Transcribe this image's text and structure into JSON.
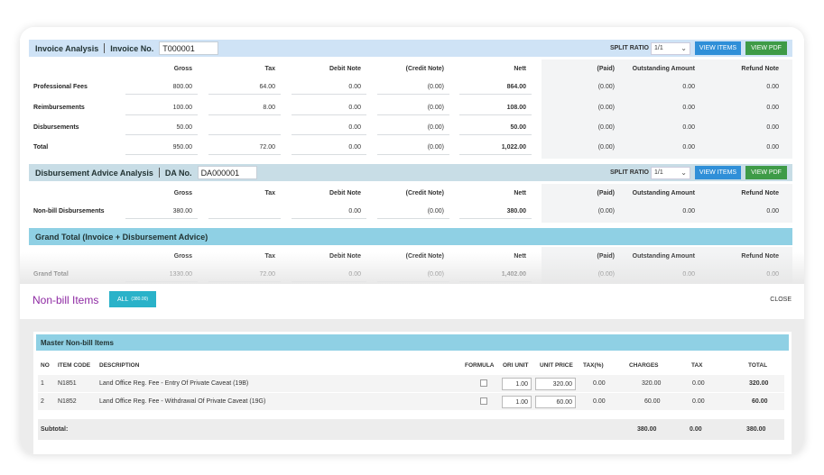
{
  "invoice": {
    "title": "Invoice Analysis",
    "no_label": "Invoice No.",
    "no_value": "T000001",
    "split_label": "SPLIT RATIO",
    "split_value": "1/1",
    "view_items": "VIEW ITEMS",
    "view_pdf": "VIEW PDF",
    "headers": [
      "Gross",
      "Tax",
      "Debit Note",
      "(Credit Note)",
      "Nett",
      "(Paid)",
      "Outstanding Amount",
      "Refund Note"
    ],
    "rows": [
      {
        "label": "Professional Fees",
        "values": [
          "800.00",
          "64.00",
          "0.00",
          "(0.00)",
          "864.00",
          "(0.00)",
          "0.00",
          "0.00"
        ]
      },
      {
        "label": "Reimbursements",
        "values": [
          "100.00",
          "8.00",
          "0.00",
          "(0.00)",
          "108.00",
          "(0.00)",
          "0.00",
          "0.00"
        ]
      },
      {
        "label": "Disbursements",
        "values": [
          "50.00",
          "",
          "0.00",
          "(0.00)",
          "50.00",
          "(0.00)",
          "0.00",
          "0.00"
        ]
      },
      {
        "label": "Total",
        "values": [
          "950.00",
          "72.00",
          "0.00",
          "(0.00)",
          "1,022.00",
          "(0.00)",
          "0.00",
          "0.00"
        ]
      }
    ]
  },
  "disbursement": {
    "title": "Disbursement Advice Analysis",
    "no_label": "DA No.",
    "no_value": "DA000001",
    "split_label": "SPLIT RATIO",
    "split_value": "1/1",
    "view_items": "VIEW ITEMS",
    "view_pdf": "VIEW PDF",
    "headers": [
      "Gross",
      "Tax",
      "Debit Note",
      "(Credit Note)",
      "Nett",
      "(Paid)",
      "Outstanding Amount",
      "Refund Note"
    ],
    "rows": [
      {
        "label": "Non-bill Disbursements",
        "values": [
          "380.00",
          "",
          "0.00",
          "(0.00)",
          "380.00",
          "(0.00)",
          "0.00",
          "0.00"
        ]
      }
    ]
  },
  "grand_total": {
    "title": "Grand Total (Invoice + Disbursement Advice)",
    "headers": [
      "Gross",
      "Tax",
      "Debit Note",
      "(Credit Note)",
      "Nett",
      "(Paid)",
      "Outstanding Amount",
      "Refund Note"
    ],
    "rows": [
      {
        "label": "Grand Total",
        "values": [
          "1330.00",
          "72.00",
          "0.00",
          "(0.00)",
          "1,402.00",
          "(0.00)",
          "0.00",
          "0.00"
        ]
      }
    ]
  },
  "nonbill": {
    "title": "Non-bill Items",
    "all_label": "ALL",
    "all_amount": "(380.00)",
    "close_label": "CLOSE",
    "master_title": "Master Non-bill Items",
    "columns": [
      "NO",
      "ITEM CODE",
      "DESCRIPTION",
      "FORMULA",
      "ORI UNIT",
      "UNIT PRICE",
      "TAX(%)",
      "CHARGES",
      "TAX",
      "TOTAL"
    ],
    "items": [
      {
        "no": "1",
        "code": "N1851",
        "description": "Land Office Reg. Fee - Entry Of Private Caveat (19B)",
        "ori_unit": "1.00",
        "unit_price": "320.00",
        "tax_pct": "0.00",
        "charges": "320.00",
        "tax": "0.00",
        "total": "320.00"
      },
      {
        "no": "2",
        "code": "N1852",
        "description": "Land Office Reg. Fee - Withdrawal Of Private Caveat (19G)",
        "ori_unit": "1.00",
        "unit_price": "60.00",
        "tax_pct": "0.00",
        "charges": "60.00",
        "tax": "0.00",
        "total": "60.00"
      }
    ],
    "subtotal_label": "Subtotal:",
    "subtotal_charges": "380.00",
    "subtotal_tax": "0.00",
    "subtotal_total": "380.00"
  },
  "colors": {
    "invoice_bar": "#cfe3f6",
    "disbursement_bar": "#c8dde6",
    "grand_bar": "#8fd0e4",
    "blue_button": "#2f8fd8",
    "green_button": "#3e9b47",
    "title_purple": "#8e2aa3"
  }
}
